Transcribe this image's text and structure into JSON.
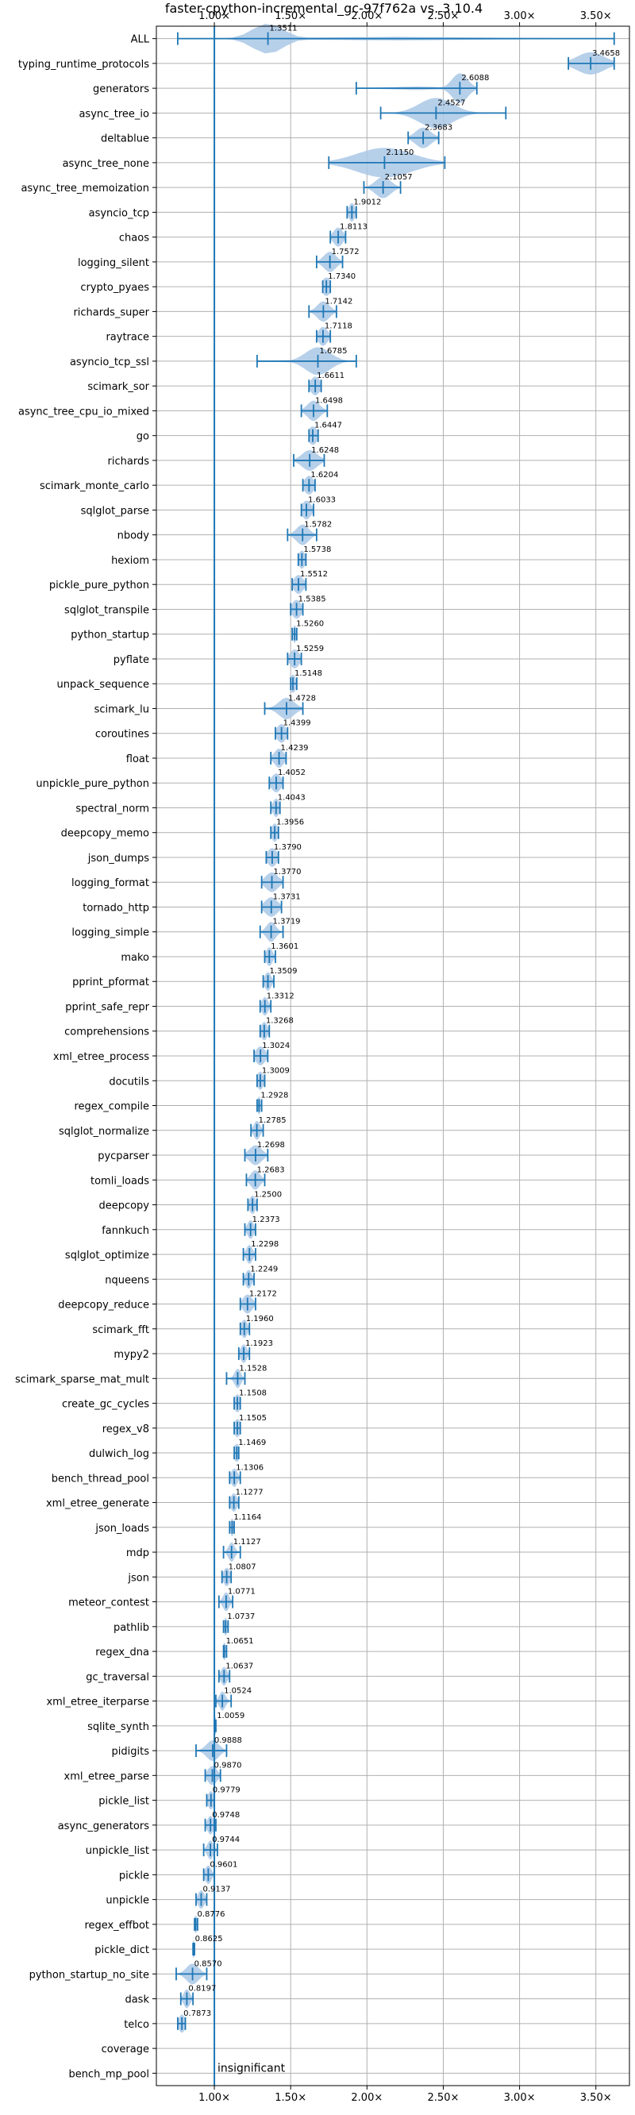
{
  "chart_data": {
    "type": "violin",
    "title": "faster-cpython-incremental_gc-97f762a vs. 3.10.4",
    "xlabel": "",
    "ylabel": "",
    "xlim": [
      0.62,
      3.72
    ],
    "x_ticks": [
      1.0,
      1.5,
      2.0,
      2.5,
      3.0,
      3.5
    ],
    "x_tick_labels": [
      "1.00×",
      "1.50×",
      "2.00×",
      "2.50×",
      "3.00×",
      "3.50×"
    ],
    "tick_positions": [
      "top",
      "bottom"
    ],
    "grid": true,
    "reference_line": 1.0,
    "colors": {
      "violin": "#aac8e6",
      "accent": "#1f77b4",
      "grid": "#b0b0b0"
    },
    "annotation": "insignificant",
    "categories": [
      "ALL",
      "typing_runtime_protocols",
      "generators",
      "async_tree_io",
      "deltablue",
      "async_tree_none",
      "async_tree_memoization",
      "asyncio_tcp",
      "chaos",
      "logging_silent",
      "crypto_pyaes",
      "richards_super",
      "raytrace",
      "asyncio_tcp_ssl",
      "scimark_sor",
      "async_tree_cpu_io_mixed",
      "go",
      "richards",
      "scimark_monte_carlo",
      "sqlglot_parse",
      "nbody",
      "hexiom",
      "pickle_pure_python",
      "sqlglot_transpile",
      "python_startup",
      "pyflate",
      "unpack_sequence",
      "scimark_lu",
      "coroutines",
      "float",
      "unpickle_pure_python",
      "spectral_norm",
      "deepcopy_memo",
      "json_dumps",
      "logging_format",
      "tornado_http",
      "logging_simple",
      "mako",
      "pprint_pformat",
      "pprint_safe_repr",
      "comprehensions",
      "xml_etree_process",
      "docutils",
      "regex_compile",
      "sqlglot_normalize",
      "pycparser",
      "tomli_loads",
      "deepcopy",
      "fannkuch",
      "sqlglot_optimize",
      "nqueens",
      "deepcopy_reduce",
      "scimark_fft",
      "mypy2",
      "scimark_sparse_mat_mult",
      "create_gc_cycles",
      "regex_v8",
      "dulwich_log",
      "bench_thread_pool",
      "xml_etree_generate",
      "json_loads",
      "mdp",
      "json",
      "meteor_contest",
      "pathlib",
      "regex_dna",
      "gc_traversal",
      "xml_etree_iterparse",
      "sqlite_synth",
      "pidigits",
      "xml_etree_parse",
      "pickle_list",
      "async_generators",
      "unpickle_list",
      "pickle",
      "unpickle",
      "regex_effbot",
      "pickle_dict",
      "python_startup_no_site",
      "dask",
      "telco",
      "coverage",
      "bench_mp_pool"
    ],
    "values": [
      1.3511,
      3.4658,
      2.6088,
      2.4527,
      2.3683,
      2.115,
      2.1057,
      1.9012,
      1.8113,
      1.7572,
      1.734,
      1.7142,
      1.7118,
      1.6785,
      1.6611,
      1.6498,
      1.6447,
      1.6248,
      1.6204,
      1.6033,
      1.5782,
      1.5738,
      1.5512,
      1.5385,
      1.526,
      1.5259,
      1.5148,
      1.4728,
      1.4399,
      1.4239,
      1.4052,
      1.4043,
      1.3956,
      1.379,
      1.377,
      1.3731,
      1.3719,
      1.3601,
      1.3509,
      1.3312,
      1.3268,
      1.3024,
      1.3009,
      1.2928,
      1.2785,
      1.2698,
      1.2683,
      1.25,
      1.2373,
      1.2298,
      1.2249,
      1.2172,
      1.196,
      1.1923,
      1.1528,
      1.1508,
      1.1505,
      1.1469,
      1.1306,
      1.1277,
      1.1164,
      1.1127,
      1.0807,
      1.0771,
      1.0737,
      1.0651,
      1.0637,
      1.0524,
      1.0059,
      0.9888,
      0.987,
      0.9779,
      0.9748,
      0.9744,
      0.9601,
      0.9137,
      0.8776,
      0.8625,
      0.857,
      0.8197,
      0.7873,
      null,
      null
    ],
    "value_labels": [
      "1.3511",
      "3.4658",
      "2.6088",
      "2.4527",
      "2.3683",
      "2.1150",
      "2.1057",
      "1.9012",
      "1.8113",
      "1.7572",
      "1.7340",
      "1.7142",
      "1.7118",
      "1.6785",
      "1.6611",
      "1.6498",
      "1.6447",
      "1.6248",
      "1.6204",
      "1.6033",
      "1.5782",
      "1.5738",
      "1.5512",
      "1.5385",
      "1.5260",
      "1.5259",
      "1.5148",
      "1.4728",
      "1.4399",
      "1.4239",
      "1.4052",
      "1.4043",
      "1.3956",
      "1.3790",
      "1.3770",
      "1.3731",
      "1.3719",
      "1.3601",
      "1.3509",
      "1.3312",
      "1.3268",
      "1.3024",
      "1.3009",
      "1.2928",
      "1.2785",
      "1.2698",
      "1.2683",
      "1.2500",
      "1.2373",
      "1.2298",
      "1.2249",
      "1.2172",
      "1.1960",
      "1.1923",
      "1.1528",
      "1.1508",
      "1.1505",
      "1.1469",
      "1.1306",
      "1.1277",
      "1.1164",
      "1.1127",
      "1.0807",
      "1.0771",
      "1.0737",
      "1.0651",
      "1.0637",
      "1.0524",
      "1.0059",
      "0.9888",
      "0.9870",
      "0.9779",
      "0.9748",
      "0.9744",
      "0.9601",
      "0.9137",
      "0.8776",
      "0.8625",
      "0.8570",
      "0.8197",
      "0.7873",
      "",
      ""
    ],
    "ranges": [
      [
        0.76,
        3.62
      ],
      [
        3.32,
        3.62
      ],
      [
        1.93,
        2.72
      ],
      [
        2.09,
        2.91
      ],
      [
        2.27,
        2.47
      ],
      [
        1.75,
        2.51
      ],
      [
        1.98,
        2.22
      ],
      [
        1.87,
        1.93
      ],
      [
        1.76,
        1.86
      ],
      [
        1.67,
        1.84
      ],
      [
        1.71,
        1.76
      ],
      [
        1.62,
        1.8
      ],
      [
        1.67,
        1.76
      ],
      [
        1.28,
        1.93
      ],
      [
        1.62,
        1.7
      ],
      [
        1.57,
        1.74
      ],
      [
        1.62,
        1.68
      ],
      [
        1.52,
        1.72
      ],
      [
        1.58,
        1.66
      ],
      [
        1.57,
        1.65
      ],
      [
        1.48,
        1.67
      ],
      [
        1.55,
        1.6
      ],
      [
        1.51,
        1.6
      ],
      [
        1.5,
        1.58
      ],
      [
        1.51,
        1.54
      ],
      [
        1.48,
        1.57
      ],
      [
        1.5,
        1.54
      ],
      [
        1.33,
        1.58
      ],
      [
        1.4,
        1.48
      ],
      [
        1.37,
        1.47
      ],
      [
        1.36,
        1.45
      ],
      [
        1.37,
        1.43
      ],
      [
        1.37,
        1.42
      ],
      [
        1.34,
        1.42
      ],
      [
        1.31,
        1.45
      ],
      [
        1.31,
        1.44
      ],
      [
        1.3,
        1.45
      ],
      [
        1.33,
        1.4
      ],
      [
        1.32,
        1.39
      ],
      [
        1.3,
        1.37
      ],
      [
        1.3,
        1.36
      ],
      [
        1.26,
        1.35
      ],
      [
        1.28,
        1.33
      ],
      [
        1.28,
        1.31
      ],
      [
        1.24,
        1.32
      ],
      [
        1.2,
        1.35
      ],
      [
        1.21,
        1.33
      ],
      [
        1.22,
        1.28
      ],
      [
        1.2,
        1.27
      ],
      [
        1.19,
        1.27
      ],
      [
        1.19,
        1.26
      ],
      [
        1.17,
        1.27
      ],
      [
        1.17,
        1.23
      ],
      [
        1.16,
        1.23
      ],
      [
        1.08,
        1.2
      ],
      [
        1.13,
        1.17
      ],
      [
        1.13,
        1.17
      ],
      [
        1.13,
        1.16
      ],
      [
        1.1,
        1.17
      ],
      [
        1.1,
        1.16
      ],
      [
        1.1,
        1.13
      ],
      [
        1.06,
        1.17
      ],
      [
        1.05,
        1.11
      ],
      [
        1.03,
        1.12
      ],
      [
        1.06,
        1.09
      ],
      [
        1.06,
        1.08
      ],
      [
        1.03,
        1.1
      ],
      [
        1.01,
        1.11
      ],
      [
        1.0,
        1.01
      ],
      [
        0.88,
        1.08
      ],
      [
        0.94,
        1.04
      ],
      [
        0.95,
        1.0
      ],
      [
        0.94,
        1.01
      ],
      [
        0.93,
        1.02
      ],
      [
        0.93,
        1.0
      ],
      [
        0.88,
        0.95
      ],
      [
        0.87,
        0.89
      ],
      [
        0.86,
        0.87
      ],
      [
        0.75,
        0.95
      ],
      [
        0.78,
        0.86
      ],
      [
        0.76,
        0.81
      ],
      [
        null,
        null
      ],
      [
        null,
        null
      ]
    ],
    "spread": [
      0.1,
      0.09,
      0.05,
      0.11,
      0.05,
      0.18,
      0.05,
      0.02,
      0.03,
      0.04,
      0.03,
      0.04,
      0.03,
      0.08,
      0.03,
      0.04,
      0.03,
      0.05,
      0.03,
      0.03,
      0.04,
      0.02,
      0.03,
      0.03,
      0.01,
      0.03,
      0.02,
      0.05,
      0.03,
      0.03,
      0.03,
      0.02,
      0.02,
      0.03,
      0.04,
      0.04,
      0.03,
      0.02,
      0.02,
      0.02,
      0.02,
      0.03,
      0.02,
      0.01,
      0.02,
      0.04,
      0.03,
      0.02,
      0.02,
      0.02,
      0.02,
      0.03,
      0.02,
      0.02,
      0.02,
      0.02,
      0.02,
      0.02,
      0.02,
      0.02,
      0.01,
      0.02,
      0.02,
      0.02,
      0.01,
      0.01,
      0.02,
      0.02,
      0.01,
      0.04,
      0.03,
      0.02,
      0.02,
      0.02,
      0.02,
      0.02,
      0.01,
      0.01,
      0.04,
      0.02,
      0.02,
      0,
      0
    ]
  }
}
